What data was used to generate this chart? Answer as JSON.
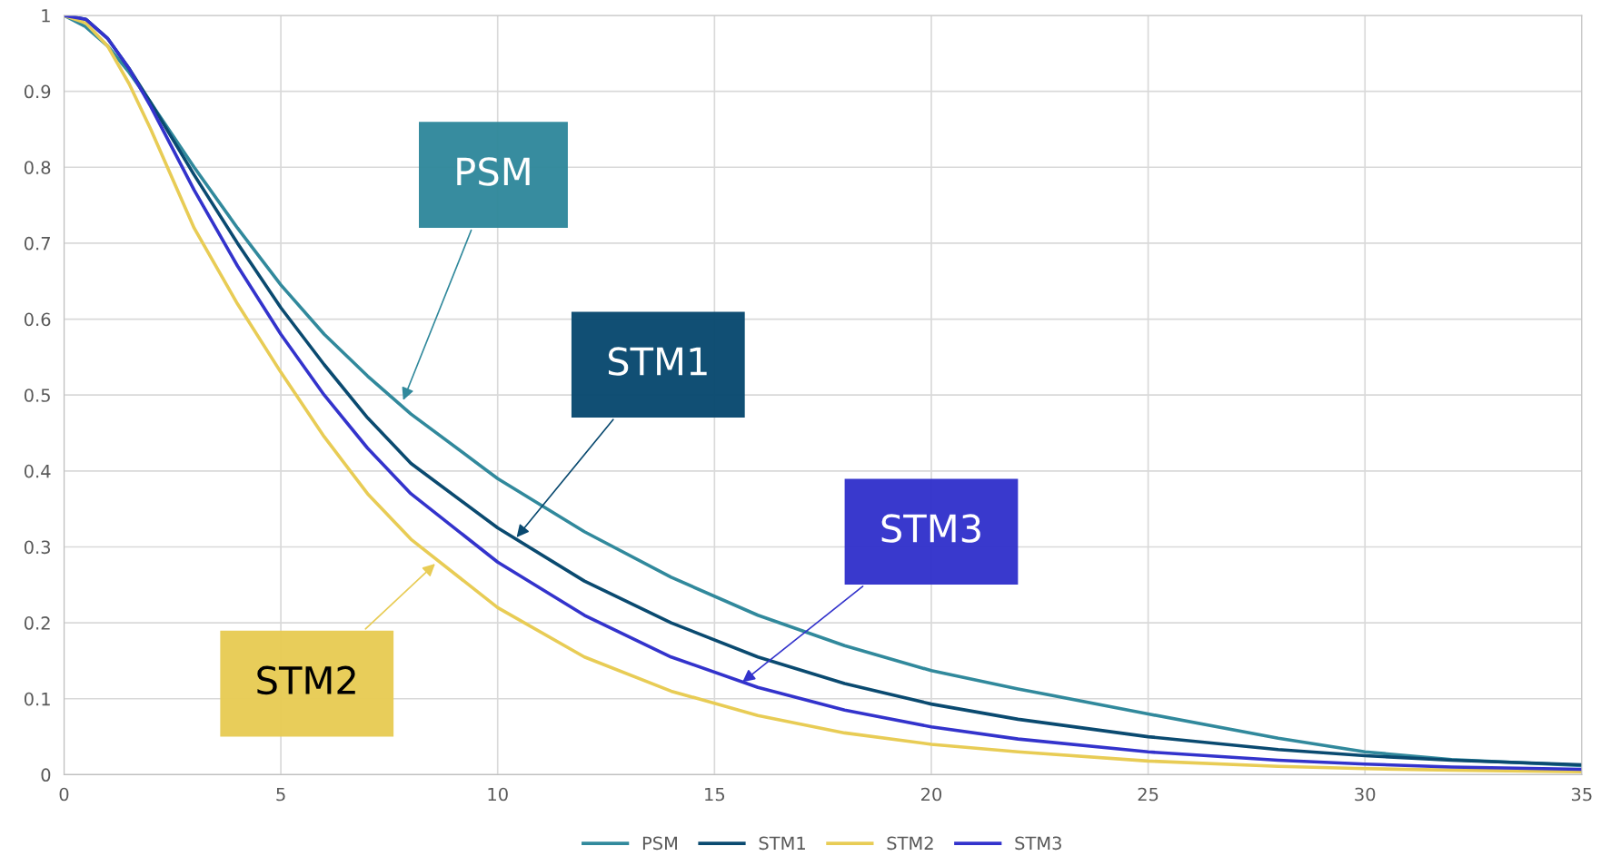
{
  "chart_data": {
    "type": "line",
    "x": [
      0,
      0.5,
      1,
      1.5,
      2,
      3,
      4,
      5,
      6,
      7,
      8,
      10,
      12,
      14,
      16,
      18,
      20,
      22,
      25,
      28,
      30,
      32,
      35
    ],
    "series": [
      {
        "name": "PSM",
        "color": "#31899c",
        "values": [
          1,
          0.985,
          0.96,
          0.925,
          0.885,
          0.8,
          0.72,
          0.645,
          0.58,
          0.525,
          0.475,
          0.39,
          0.32,
          0.26,
          0.21,
          0.17,
          0.137,
          0.113,
          0.08,
          0.048,
          0.03,
          0.02,
          0.012
        ]
      },
      {
        "name": "STM1",
        "color": "#0a4a70",
        "values": [
          1,
          0.995,
          0.97,
          0.93,
          0.885,
          0.79,
          0.7,
          0.615,
          0.54,
          0.47,
          0.41,
          0.325,
          0.255,
          0.2,
          0.155,
          0.12,
          0.093,
          0.073,
          0.05,
          0.033,
          0.025,
          0.019,
          0.013
        ]
      },
      {
        "name": "STM2",
        "color": "#e8cc55",
        "values": [
          1,
          0.99,
          0.96,
          0.91,
          0.85,
          0.72,
          0.62,
          0.53,
          0.445,
          0.37,
          0.31,
          0.22,
          0.155,
          0.11,
          0.078,
          0.055,
          0.04,
          0.03,
          0.018,
          0.011,
          0.008,
          0.006,
          0.004
        ]
      },
      {
        "name": "STM3",
        "color": "#3333cc",
        "values": [
          1,
          0.995,
          0.97,
          0.93,
          0.88,
          0.77,
          0.67,
          0.58,
          0.5,
          0.43,
          0.37,
          0.28,
          0.21,
          0.155,
          0.115,
          0.085,
          0.063,
          0.047,
          0.03,
          0.019,
          0.014,
          0.01,
          0.007
        ]
      }
    ],
    "annotations": [
      {
        "text": "PSM",
        "x": 7.8,
        "y": 0.49
      },
      {
        "text": "STM1",
        "x": 10.4,
        "y": 0.31
      },
      {
        "text": "STM2",
        "x": 8.6,
        "y": 0.28
      },
      {
        "text": "STM3",
        "x": 15.6,
        "y": 0.12
      }
    ],
    "xlim": [
      0,
      35
    ],
    "xticks": [
      0,
      5,
      10,
      15,
      20,
      25,
      30,
      35
    ],
    "ylim": [
      0,
      1
    ],
    "yticks": [
      0,
      0.1,
      0.2,
      0.3,
      0.4,
      0.5,
      0.6,
      0.7,
      0.8,
      0.9,
      1
    ],
    "grid": true,
    "legend": "bottom",
    "marker": "none",
    "line_style": "solid"
  }
}
